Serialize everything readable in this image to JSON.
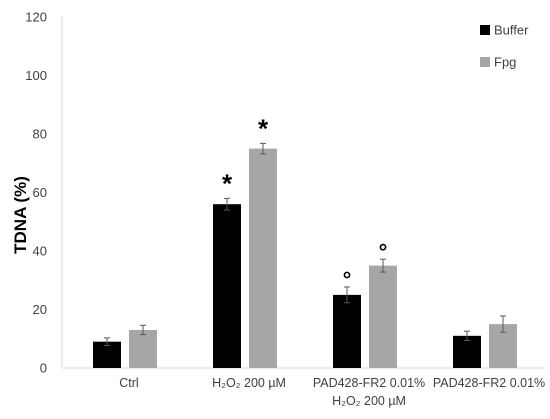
{
  "chart_data": {
    "type": "bar",
    "title": "",
    "xlabel": "",
    "ylabel": "TDNA (%)",
    "ylim": [
      0,
      120
    ],
    "yticks": [
      0,
      20,
      40,
      60,
      80,
      100,
      120
    ],
    "grid": false,
    "legend_position": "top-right",
    "categories": [
      {
        "line1": "Ctrl",
        "line2": ""
      },
      {
        "line1": "H₂O₂ 200 µM",
        "line2": ""
      },
      {
        "line1": "PAD428-FR2 0.01%",
        "line2": "H₂O₂ 200 µM"
      },
      {
        "line1": "PAD428-FR2 0.01%",
        "line2": ""
      }
    ],
    "series": [
      {
        "name": "Buffer",
        "color": "#000000",
        "values": [
          9,
          56,
          25,
          11
        ],
        "errors": [
          1.3,
          2.0,
          2.7,
          1.6
        ],
        "annotations": [
          "",
          "star",
          "circle",
          ""
        ]
      },
      {
        "name": "Fpg",
        "color": "#a6a6a6",
        "values": [
          13,
          75,
          35,
          15
        ],
        "errors": [
          1.6,
          1.8,
          2.2,
          2.8
        ],
        "annotations": [
          "",
          "star",
          "circle",
          ""
        ]
      }
    ]
  }
}
